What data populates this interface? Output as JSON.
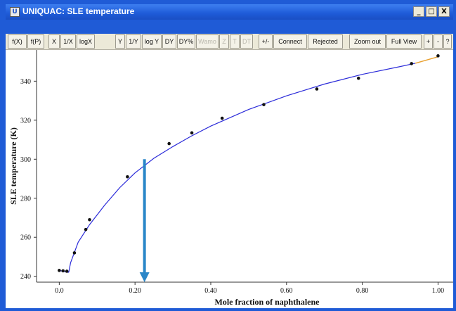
{
  "window": {
    "icon_label": "U",
    "title": "UNIQUAC: SLE temperature",
    "controls": {
      "minimize": "_",
      "maximize": "□",
      "close": "X"
    }
  },
  "toolbar": [
    {
      "label": "f(X)",
      "enabled": true
    },
    {
      "label": "f(P)",
      "enabled": true
    },
    {
      "label": "X",
      "enabled": true,
      "selected": true
    },
    {
      "label": "1/X",
      "enabled": true
    },
    {
      "label": "logX",
      "enabled": true
    },
    {
      "label": "Y",
      "enabled": true,
      "selected": true
    },
    {
      "label": "1/Y",
      "enabled": true
    },
    {
      "label": "log Y",
      "enabled": true
    },
    {
      "label": "DY",
      "enabled": true
    },
    {
      "label": "DY%",
      "enabled": true
    },
    {
      "label": "Wamo",
      "enabled": false
    },
    {
      "label": "Z",
      "enabled": false
    },
    {
      "label": "T",
      "enabled": false
    },
    {
      "label": "DT",
      "enabled": false
    },
    {
      "label": "+/-",
      "enabled": true
    },
    {
      "label": "Connect",
      "enabled": true
    },
    {
      "label": "Rejected",
      "enabled": true
    },
    {
      "label": "Zoom out",
      "enabled": true
    },
    {
      "label": "Full View",
      "enabled": true
    },
    {
      "label": "+",
      "enabled": true
    },
    {
      "label": "-",
      "enabled": true
    },
    {
      "label": "?",
      "enabled": true
    }
  ],
  "chart_data": {
    "type": "scatter",
    "xlabel": "Mole fraction of naphthalene",
    "ylabel": "SLE temperature (K)",
    "xlim": [
      -0.06,
      1.04
    ],
    "ylim": [
      237,
      356
    ],
    "x_ticks": [
      0.0,
      0.2,
      0.4,
      0.6,
      0.8,
      1.0
    ],
    "x_tick_labels": [
      "0.0",
      "0.20",
      "0.40",
      "0.60",
      "0.80",
      "1.00"
    ],
    "y_ticks": [
      240,
      260,
      280,
      300,
      320,
      340
    ],
    "y_tick_labels": [
      "240",
      "260",
      "280",
      "300",
      "320",
      "340"
    ],
    "grid": false,
    "points": [
      {
        "x": 0.0,
        "y": 243.0
      },
      {
        "x": 0.01,
        "y": 242.8
      },
      {
        "x": 0.02,
        "y": 242.6
      },
      {
        "x": 0.04,
        "y": 252.0
      },
      {
        "x": 0.07,
        "y": 264.0
      },
      {
        "x": 0.08,
        "y": 269.0
      },
      {
        "x": 0.18,
        "y": 291.0
      },
      {
        "x": 0.29,
        "y": 308.0
      },
      {
        "x": 0.35,
        "y": 313.5
      },
      {
        "x": 0.43,
        "y": 321.0
      },
      {
        "x": 0.54,
        "y": 328.0
      },
      {
        "x": 0.68,
        "y": 336.0
      },
      {
        "x": 0.79,
        "y": 341.5
      },
      {
        "x": 0.93,
        "y": 349.0
      },
      {
        "x": 1.0,
        "y": 353.0
      }
    ],
    "curve_eutectic": [
      {
        "x": 0.0,
        "y": 243.0
      },
      {
        "x": 0.025,
        "y": 242.0
      }
    ],
    "curve_liquidus": [
      {
        "x": 0.025,
        "y": 242.0
      },
      {
        "x": 0.03,
        "y": 247.0
      },
      {
        "x": 0.05,
        "y": 257.5
      },
      {
        "x": 0.08,
        "y": 266.5
      },
      {
        "x": 0.12,
        "y": 276.5
      },
      {
        "x": 0.16,
        "y": 285.5
      },
      {
        "x": 0.2,
        "y": 293.0
      },
      {
        "x": 0.25,
        "y": 300.5
      },
      {
        "x": 0.3,
        "y": 306.5
      },
      {
        "x": 0.35,
        "y": 312.0
      },
      {
        "x": 0.4,
        "y": 317.0
      },
      {
        "x": 0.5,
        "y": 325.5
      },
      {
        "x": 0.6,
        "y": 332.5
      },
      {
        "x": 0.7,
        "y": 338.5
      },
      {
        "x": 0.8,
        "y": 343.5
      },
      {
        "x": 0.9,
        "y": 347.5
      },
      {
        "x": 0.94,
        "y": 349.2
      }
    ],
    "curve_pure": [
      {
        "x": 0.94,
        "y": 349.2
      },
      {
        "x": 1.0,
        "y": 352.5
      }
    ],
    "arrow": {
      "x": 0.225,
      "y_from": 300.0,
      "y_to": 237.0
    },
    "colors": {
      "curve": "#2b2bd9",
      "curve_end": "#e8a030",
      "points": "#111111",
      "arrow": "#2a86c8"
    }
  }
}
